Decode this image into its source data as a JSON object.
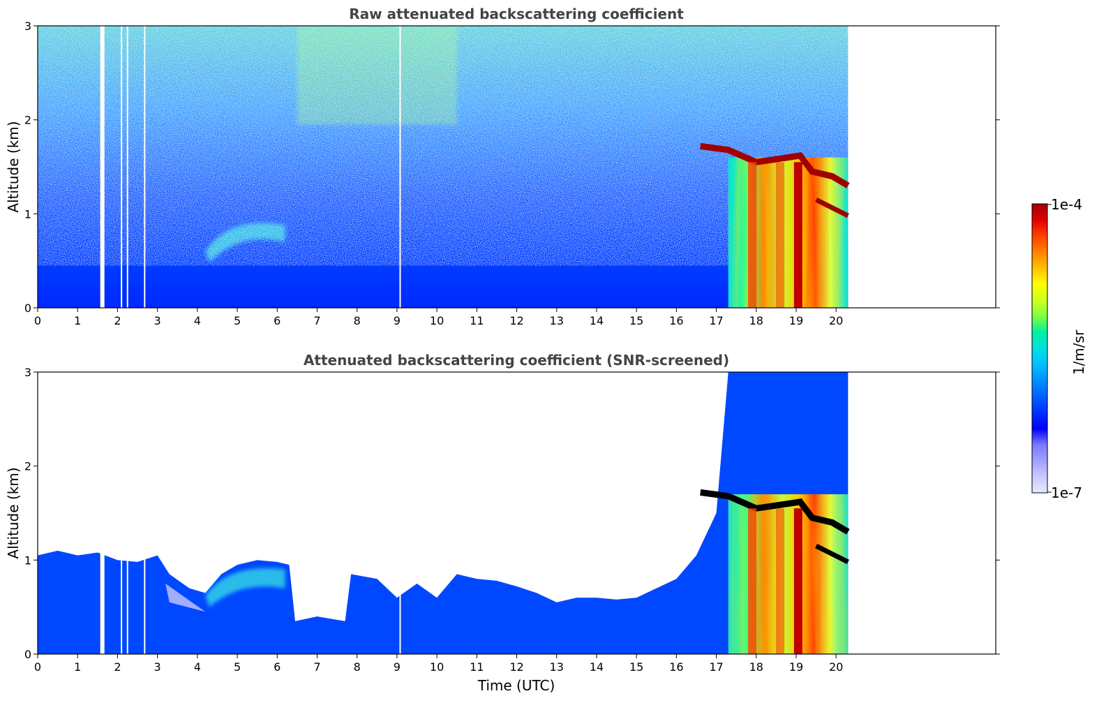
{
  "colors": {
    "colormap": [
      "#e8e8ff",
      "#c8c8ff",
      "#a0a0ff",
      "#7878ff",
      "#0000ff",
      "#0030ff",
      "#0060ff",
      "#0090ff",
      "#00c0ff",
      "#00e0e0",
      "#00f0a0",
      "#80ff40",
      "#d0ff20",
      "#ffff00",
      "#ffc000",
      "#ff8000",
      "#ff4000",
      "#e00000",
      "#a00000"
    ]
  },
  "chart_data": [
    {
      "type": "heatmap",
      "title": "Raw attenuated backscattering coefficient",
      "xlabel": "",
      "ylabel": "Altitude (km)",
      "xlim": [
        0,
        24
      ],
      "ylim": [
        0,
        3
      ],
      "xticks": [
        "0",
        "1",
        "2",
        "3",
        "4",
        "5",
        "6",
        "7",
        "8",
        "9",
        "10",
        "11",
        "12",
        "13",
        "14",
        "15",
        "16",
        "17",
        "18",
        "19",
        "20"
      ],
      "yticks": [
        "0",
        "1",
        "2",
        "3"
      ],
      "data_end_time": 20.3,
      "data_gaps": [
        1.62,
        2.1,
        2.25,
        2.68,
        9.08
      ],
      "features": {
        "noise_background_above": 0.5,
        "aerosol_layer_top_km": 0.9,
        "cloud_base_km": 1.6,
        "precipitation_start_time": 17.3
      }
    },
    {
      "type": "heatmap",
      "title": "Attenuated backscattering coefficient (SNR-screened)",
      "xlabel": "Time (UTC)",
      "ylabel": "Altitude (km)",
      "xlim": [
        0,
        24
      ],
      "ylim": [
        0,
        3
      ],
      "xticks": [
        "0",
        "1",
        "2",
        "3",
        "4",
        "5",
        "6",
        "7",
        "8",
        "9",
        "10",
        "11",
        "12",
        "13",
        "14",
        "15",
        "16",
        "17",
        "18",
        "19",
        "20"
      ],
      "yticks": [
        "0",
        "1",
        "2",
        "3"
      ],
      "data_end_time": 20.3,
      "data_gaps": [
        1.62,
        2.1,
        2.25,
        2.68,
        9.08
      ],
      "signal_top_km": [
        [
          0,
          1.05
        ],
        [
          0.5,
          1.1
        ],
        [
          1,
          1.05
        ],
        [
          1.5,
          1.08
        ],
        [
          2,
          1.0
        ],
        [
          2.5,
          0.98
        ],
        [
          3,
          1.05
        ],
        [
          3.3,
          0.85
        ],
        [
          3.8,
          0.7
        ],
        [
          4.2,
          0.65
        ],
        [
          4.6,
          0.85
        ],
        [
          5,
          0.95
        ],
        [
          5.5,
          1.0
        ],
        [
          6,
          0.98
        ],
        [
          6.3,
          0.95
        ],
        [
          6.45,
          0.35
        ],
        [
          7,
          0.4
        ],
        [
          7.7,
          0.35
        ],
        [
          7.85,
          0.85
        ],
        [
          8.5,
          0.8
        ],
        [
          9,
          0.6
        ],
        [
          9.5,
          0.75
        ],
        [
          10,
          0.6
        ],
        [
          10.5,
          0.85
        ],
        [
          11,
          0.8
        ],
        [
          11.5,
          0.78
        ],
        [
          12,
          0.72
        ],
        [
          12.5,
          0.65
        ],
        [
          13,
          0.55
        ],
        [
          13.5,
          0.6
        ],
        [
          14,
          0.6
        ],
        [
          14.5,
          0.58
        ],
        [
          15,
          0.6
        ],
        [
          15.5,
          0.7
        ],
        [
          16,
          0.8
        ],
        [
          16.5,
          1.05
        ],
        [
          17,
          1.5
        ],
        [
          17.3,
          3.0
        ]
      ]
    }
  ],
  "colorbar": {
    "label": "1/m/sr",
    "max_label": "1e-4",
    "min_label": "1e-7"
  }
}
